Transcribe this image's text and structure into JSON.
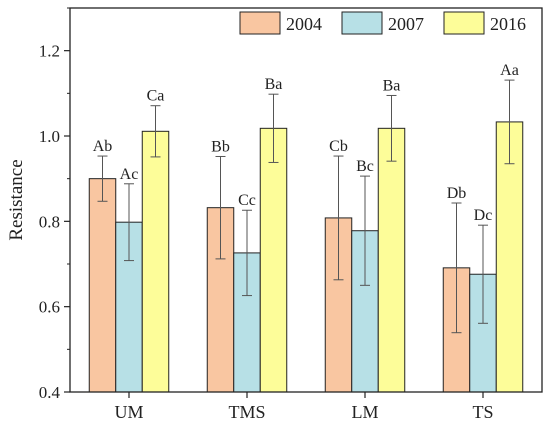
{
  "chart_data": {
    "type": "bar",
    "ylabel": "Resistance",
    "xlabel": "",
    "ylim": [
      0.4,
      1.3
    ],
    "yticks": [
      0.4,
      0.6,
      0.8,
      1.0,
      1.2
    ],
    "ytick_labels": [
      "0.4",
      "0.6",
      "0.8",
      "1.0",
      "1.2"
    ],
    "categories": [
      "UM",
      "TMS",
      "LM",
      "TS"
    ],
    "legend_position": "top-right",
    "series": [
      {
        "name": "2004",
        "color": "#F9C6A1",
        "values": [
          0.9,
          0.832,
          0.808,
          0.691
        ],
        "errors": [
          0.053,
          0.12,
          0.145,
          0.152
        ],
        "labels": [
          "Ab",
          "Bb",
          "Cb",
          "Db"
        ]
      },
      {
        "name": "2007",
        "color": "#B7E0E6",
        "values": [
          0.798,
          0.726,
          0.778,
          0.676
        ],
        "errors": [
          0.09,
          0.1,
          0.128,
          0.115
        ],
        "labels": [
          "Ac",
          "Cc",
          "Bc",
          "Dc"
        ]
      },
      {
        "name": "2016",
        "color": "#FDFD99",
        "values": [
          1.011,
          1.018,
          1.018,
          1.033
        ],
        "errors": [
          0.06,
          0.08,
          0.077,
          0.098
        ],
        "labels": [
          "Ca",
          "Ba",
          "Ba",
          "Aa"
        ]
      }
    ]
  }
}
